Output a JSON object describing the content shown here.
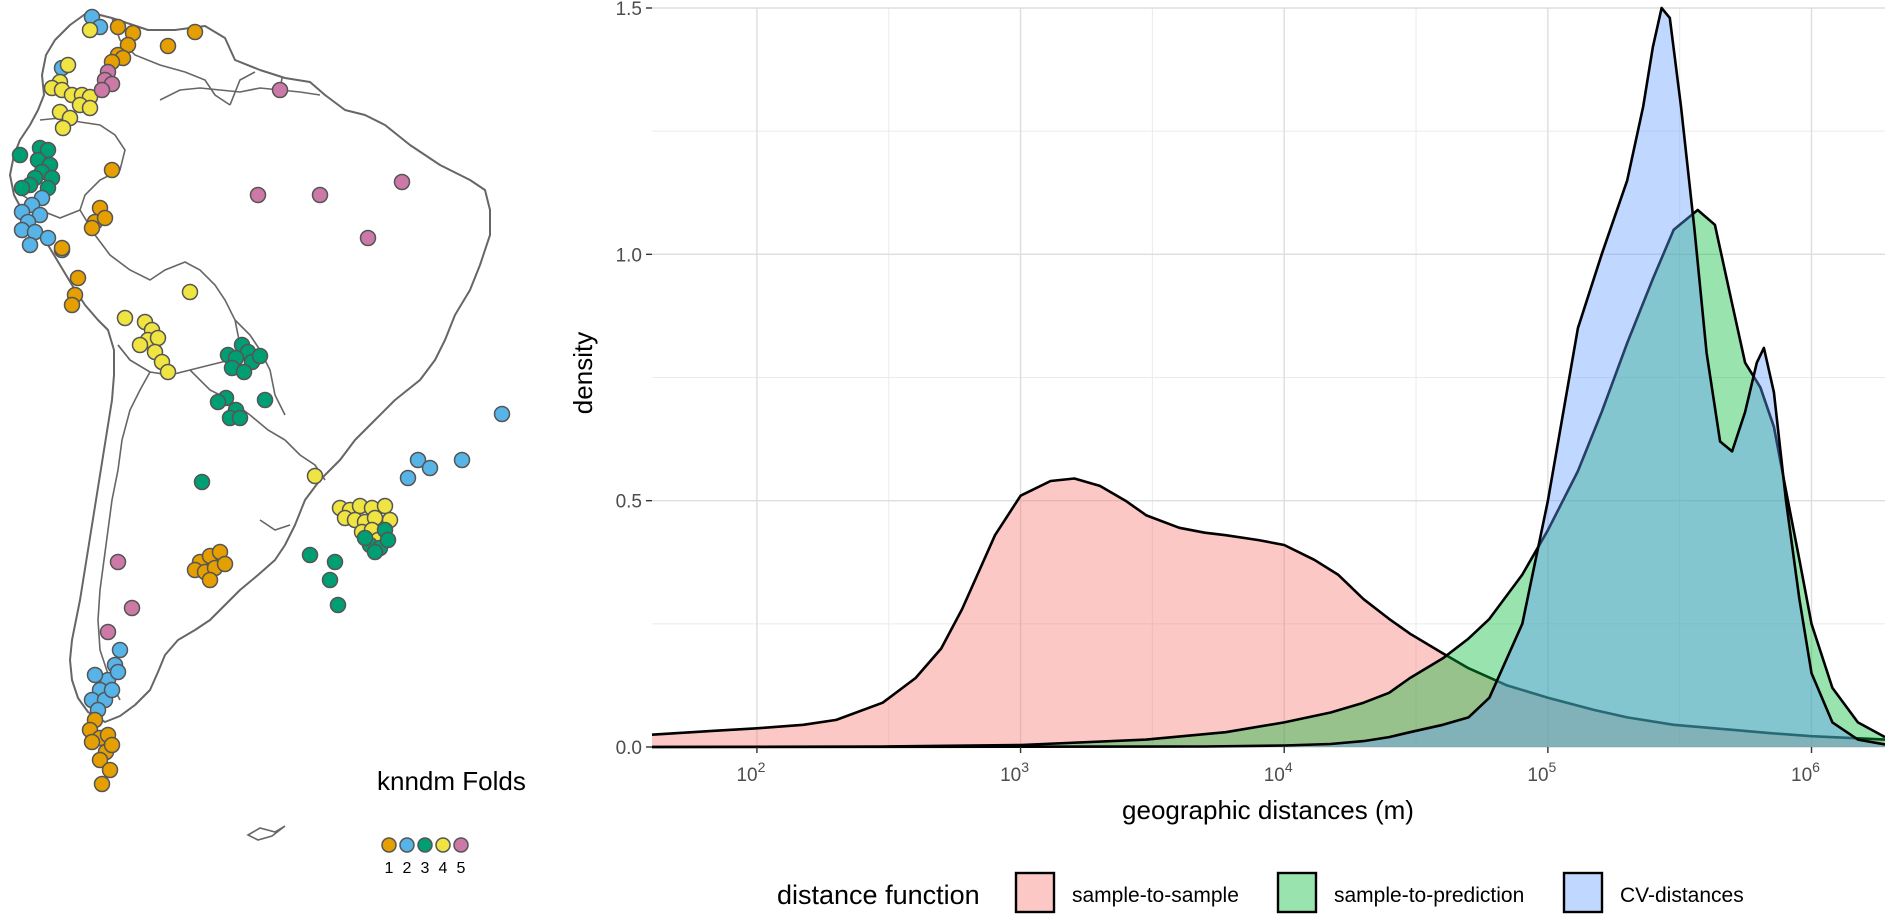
{
  "map": {
    "legend_title": "knndm Folds",
    "folds": [
      {
        "label": "1",
        "color": "#E69F00"
      },
      {
        "label": "2",
        "color": "#56B4E9"
      },
      {
        "label": "3",
        "color": "#009E73"
      },
      {
        "label": "4",
        "color": "#F0E442"
      },
      {
        "label": "5",
        "color": "#CC79A7"
      }
    ],
    "outline_color": "#666666"
  },
  "chart_data": {
    "type": "area",
    "xlabel": "geographic distances (m)",
    "ylabel": "density",
    "x_scale": "log10",
    "xlim": [
      40,
      1900000
    ],
    "ylim": [
      0,
      1.5
    ],
    "x_ticks": [
      {
        "value": 100,
        "base": "10",
        "exp": "2"
      },
      {
        "value": 1000,
        "base": "10",
        "exp": "3"
      },
      {
        "value": 10000,
        "base": "10",
        "exp": "4"
      },
      {
        "value": 100000,
        "base": "10",
        "exp": "5"
      },
      {
        "value": 1000000,
        "base": "10",
        "exp": "6"
      }
    ],
    "y_ticks": [
      "0.0",
      "0.5",
      "1.0",
      "1.5"
    ],
    "y_tick_values": [
      0,
      0.5,
      1.0,
      1.5
    ],
    "grid": true,
    "legend_title": "distance function",
    "legend_position": "bottom",
    "series": [
      {
        "name": "sample-to-sample",
        "color": "#F8766D",
        "x": [
          40,
          70,
          100,
          150,
          200,
          300,
          400,
          500,
          600,
          700,
          800,
          1000,
          1300,
          1600,
          2000,
          2500,
          3000,
          4000,
          5000,
          6000,
          8000,
          10000,
          13000,
          16000,
          20000,
          25000,
          30000,
          40000,
          50000,
          70000,
          100000,
          150000,
          200000,
          300000,
          500000,
          700000,
          1000000,
          1900000
        ],
        "y": [
          0.025,
          0.033,
          0.038,
          0.045,
          0.055,
          0.09,
          0.14,
          0.2,
          0.28,
          0.36,
          0.43,
          0.51,
          0.54,
          0.545,
          0.53,
          0.5,
          0.47,
          0.445,
          0.435,
          0.43,
          0.42,
          0.41,
          0.38,
          0.35,
          0.3,
          0.26,
          0.23,
          0.19,
          0.16,
          0.125,
          0.1,
          0.075,
          0.06,
          0.045,
          0.035,
          0.028,
          0.022,
          0.015
        ]
      },
      {
        "name": "sample-to-prediction",
        "color": "#00BA38",
        "x": [
          40,
          300,
          1000,
          3000,
          6000,
          10000,
          15000,
          20000,
          25000,
          30000,
          40000,
          50000,
          60000,
          80000,
          100000,
          130000,
          160000,
          200000,
          250000,
          300000,
          370000,
          430000,
          500000,
          560000,
          640000,
          720000,
          800000,
          900000,
          1000000,
          1200000,
          1500000,
          1900000
        ],
        "y": [
          0,
          0.001,
          0.004,
          0.015,
          0.03,
          0.05,
          0.07,
          0.09,
          0.11,
          0.14,
          0.18,
          0.22,
          0.26,
          0.35,
          0.44,
          0.56,
          0.68,
          0.82,
          0.95,
          1.05,
          1.09,
          1.06,
          0.9,
          0.78,
          0.73,
          0.65,
          0.52,
          0.38,
          0.25,
          0.12,
          0.05,
          0.02
        ]
      },
      {
        "name": "CV-distances",
        "color": "#619CFF",
        "x": [
          40,
          5000,
          10000,
          15000,
          20000,
          25000,
          30000,
          40000,
          50000,
          60000,
          80000,
          100000,
          130000,
          160000,
          200000,
          230000,
          250000,
          270000,
          290000,
          320000,
          360000,
          400000,
          450000,
          500000,
          560000,
          620000,
          660000,
          720000,
          800000,
          900000,
          1000000,
          1200000,
          1500000,
          1900000
        ],
        "y": [
          0,
          0.001,
          0.003,
          0.006,
          0.012,
          0.02,
          0.03,
          0.045,
          0.06,
          0.1,
          0.25,
          0.5,
          0.85,
          1.0,
          1.15,
          1.3,
          1.42,
          1.5,
          1.48,
          1.3,
          1.05,
          0.8,
          0.62,
          0.6,
          0.68,
          0.78,
          0.81,
          0.72,
          0.5,
          0.3,
          0.15,
          0.05,
          0.015,
          0.005
        ]
      }
    ]
  }
}
